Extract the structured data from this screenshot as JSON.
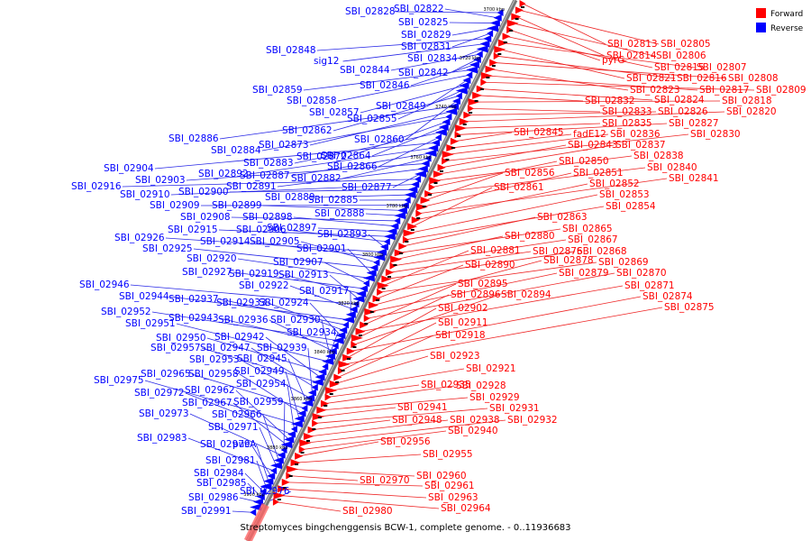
{
  "caption": "Streptomyces bingchenggensis BCW-1, complete genome. - 0..11936683",
  "legend": {
    "forward": {
      "label": "Forward",
      "color": "#ff0000"
    },
    "reverse": {
      "label": "Reverse",
      "color": "#0000ff"
    }
  },
  "colors": {
    "forward_line": "#ee2222",
    "reverse_line": "#2828e6",
    "axis": "#777777"
  },
  "ticks": [
    "3700 kbp",
    "3720 kbp",
    "3740 kbp",
    "3760 kbp",
    "3780 kbp",
    "3800 kbp",
    "3820 kbp",
    "3840 kbp",
    "3860 kbp",
    "3880 kbp",
    "3900 kbp"
  ],
  "reverse_genes": [
    "SBI_02828",
    "SBI_02822",
    "SBI_02825",
    "SBI_02829",
    "SBI_02831",
    "SBI_02848",
    "sig12",
    "SBI_02834",
    "SBI_02844",
    "SBI_02842",
    "SBI_02846",
    "SBI_02859",
    "SBI_02858",
    "SBI_02849",
    "SBI_02857",
    "SBI_02855",
    "SBI_02862",
    "SBI_02860",
    "SBI_02886",
    "SBI_02873",
    "SBI_02884",
    "SBI_02872",
    "SBI_02864",
    "SBI_02883",
    "SBI_02866",
    "SBI_02904",
    "SBI_02892",
    "SBI_02887",
    "SBI_02882",
    "SBI_02903",
    "SBI_02891",
    "SBI_02877",
    "SBI_02916",
    "SBI_02910",
    "SBI_02900",
    "SBI_02889",
    "SBI_02885",
    "SBI_02909",
    "SBI_02899",
    "SBI_02888",
    "SBI_02908",
    "SBI_02898",
    "SBI_02897",
    "SBI_02915",
    "SBI_02906",
    "SBI_02893",
    "SBI_02926",
    "SBI_02914",
    "SBI_02905",
    "SBI_02925",
    "SBI_02901",
    "SBI_02920",
    "SBI_02907",
    "SBI_02927",
    "SBI_02919",
    "SBI_02913",
    "SBI_02946",
    "SBI_02922",
    "SBI_02917",
    "SBI_02944",
    "SBI_02937",
    "SBI_02933",
    "SBI_02924",
    "SBI_02952",
    "SBI_02943",
    "SBI_02936",
    "SBI_02930",
    "SBI_02951",
    "SBI_02934",
    "SBI_02950",
    "SBI_02942",
    "SBI_02957",
    "SBI_02947",
    "SBI_02939",
    "SBI_02953",
    "SBI_02945",
    "SBI_02965",
    "SBI_02958",
    "SBI_02949",
    "SBI_02975",
    "SBI_02954",
    "SBI_02972",
    "SBI_02962",
    "SBI_02967",
    "SBI_02959",
    "SBI_02973",
    "SBI_02966",
    "SBI_02971",
    "SBI_02983",
    "SBI_02979",
    "pucA",
    "SBI_02981",
    "SBI_02984",
    "SBI_02985",
    "SBI_02986",
    "SBI_02976",
    "SBI_02991"
  ],
  "forward_genes": [
    "SBI_02813",
    "SBI_02805",
    "SBI_02814",
    "SBI_02806",
    "pyrG",
    "SBI_02815",
    "SBI_02807",
    "SBI_02821",
    "SBI_02816",
    "SBI_02808",
    "SBI_02823",
    "SBI_02817",
    "SBI_02809",
    "SBI_02824",
    "SBI_02832",
    "SBI_02818",
    "SBI_02833",
    "SBI_02826",
    "SBI_02820",
    "SBI_02835",
    "SBI_02827",
    "SBI_02845",
    "fadE12",
    "SBI_02836",
    "SBI_02830",
    "SBI_02843",
    "SBI_02837",
    "SBI_02838",
    "SBI_02850",
    "SBI_02840",
    "SBI_02856",
    "SBI_02851",
    "SBI_02841",
    "SBI_02852",
    "SBI_02861",
    "SBI_02853",
    "SBI_02854",
    "SBI_02863",
    "SBI_02865",
    "SBI_02880",
    "SBI_02867",
    "SBI_02876",
    "SBI_02868",
    "SBI_02881",
    "SBI_02869",
    "SBI_02890",
    "SBI_02878",
    "SBI_02879",
    "SBI_02870",
    "SBI_02895",
    "SBI_02871",
    "SBI_02896",
    "SBI_02894",
    "SBI_02874",
    "SBI_02902",
    "SBI_02875",
    "SBI_02911",
    "SBI_02918",
    "SBI_02923",
    "SBI_02921",
    "SBI_02935",
    "SBI_02928",
    "SBI_02929",
    "SBI_02941",
    "SBI_02931",
    "SBI_02948",
    "SBI_02938",
    "SBI_02932",
    "SBI_02940",
    "SBI_02956",
    "SBI_02955",
    "SBI_02960",
    "SBI_02970",
    "SBI_02961",
    "SBI_02963",
    "SBI_02964",
    "SBI_02980"
  ]
}
